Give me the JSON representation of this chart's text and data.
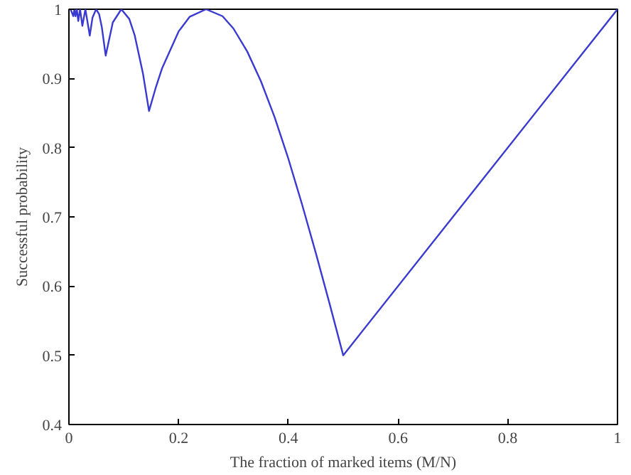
{
  "chart_data": {
    "type": "line",
    "xlabel": "The fraction of marked items (M/N)",
    "ylabel": "Successful probability",
    "xlim": [
      0,
      1
    ],
    "ylim": [
      0.4,
      1
    ],
    "xticks": [
      0,
      0.2,
      0.4,
      0.6,
      0.8,
      1
    ],
    "yticks": [
      0.4,
      0.5,
      0.6,
      0.7,
      0.8,
      0.9,
      1
    ],
    "grid": false,
    "series": [
      {
        "color": "#3a3ad0",
        "x": [
          0.003,
          0.008,
          0.01,
          0.012,
          0.0145,
          0.017,
          0.0203,
          0.0245,
          0.03,
          0.038,
          0.043,
          0.0495,
          0.055,
          0.06,
          0.067,
          0.08,
          0.0955,
          0.11,
          0.12,
          0.135,
          0.146,
          0.158,
          0.17,
          0.2,
          0.22,
          0.25,
          0.28,
          0.3,
          0.325,
          0.35,
          0.375,
          0.4,
          0.425,
          0.45,
          0.475,
          0.5,
          1.0
        ],
        "values": [
          1.0,
          0.99,
          1.0,
          0.99,
          1.0,
          0.983,
          1.0,
          0.976,
          1.0,
          0.962,
          0.988,
          1.0,
          0.993,
          0.974,
          0.933,
          0.981,
          1.0,
          0.986,
          0.962,
          0.907,
          0.853,
          0.886,
          0.915,
          0.968,
          0.989,
          1.0,
          0.99,
          0.972,
          0.939,
          0.896,
          0.844,
          0.784,
          0.718,
          0.648,
          0.575,
          0.5,
          1.0
        ]
      }
    ]
  }
}
